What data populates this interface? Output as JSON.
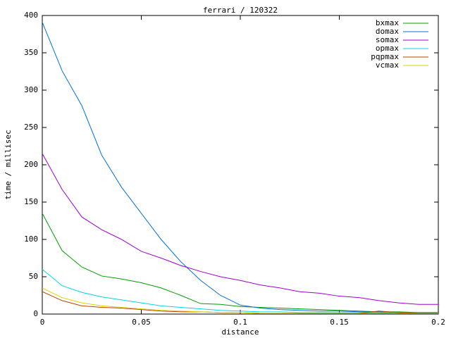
{
  "chart_data": {
    "type": "line",
    "title": "ferrari / 120322",
    "xlabel": "distance",
    "ylabel": "time / millisec",
    "x": [
      0,
      0.01,
      0.02,
      0.03,
      0.04,
      0.05,
      0.06,
      0.07,
      0.08,
      0.09,
      0.1,
      0.11,
      0.12,
      0.13,
      0.14,
      0.15,
      0.16,
      0.17,
      0.18,
      0.19,
      0.2
    ],
    "xlim": [
      0,
      0.2
    ],
    "xticks": [
      0,
      0.05,
      0.1,
      0.15,
      0.2
    ],
    "ylim": [
      0,
      400
    ],
    "yticks": [
      0,
      50,
      100,
      150,
      200,
      250,
      300,
      350,
      400
    ],
    "legend": "top-right",
    "series": [
      {
        "name": "bxmax",
        "color": "#00a000",
        "values": [
          135,
          85,
          63,
          51,
          47,
          42,
          35,
          25,
          14,
          13,
          10,
          9,
          8,
          7,
          6,
          5,
          4,
          3,
          3,
          2,
          2
        ]
      },
      {
        "name": "domax",
        "color": "#0070e0",
        "values": [
          391,
          326,
          279,
          213,
          170,
          135,
          100,
          70,
          45,
          25,
          12,
          8,
          6,
          5,
          4,
          4,
          3,
          3,
          2,
          2,
          2
        ]
      },
      {
        "name": "somax",
        "color": "#a000d0",
        "values": [
          215,
          167,
          130,
          113,
          100,
          84,
          75,
          65,
          57,
          50,
          45,
          39,
          35,
          30,
          28,
          24,
          22,
          18,
          15,
          13,
          13
        ]
      },
      {
        "name": "opmax",
        "color": "#00d8e0",
        "values": [
          60,
          38,
          29,
          23,
          19,
          15,
          11,
          9,
          7,
          5,
          4,
          3,
          3,
          2,
          2,
          2,
          2,
          2,
          1,
          1,
          1
        ]
      },
      {
        "name": "pqpmax",
        "color": "#c04000",
        "values": [
          30,
          18,
          11,
          9,
          8,
          6,
          4,
          3,
          3,
          2,
          2,
          1,
          1,
          1,
          1,
          1,
          1,
          4,
          2,
          1,
          1
        ]
      },
      {
        "name": "vcmax",
        "color": "#e0d000",
        "values": [
          35,
          22,
          15,
          11,
          9,
          7,
          5,
          4,
          3,
          2,
          2,
          1,
          1,
          1,
          1,
          1,
          1,
          1,
          1,
          1,
          1
        ]
      }
    ]
  }
}
